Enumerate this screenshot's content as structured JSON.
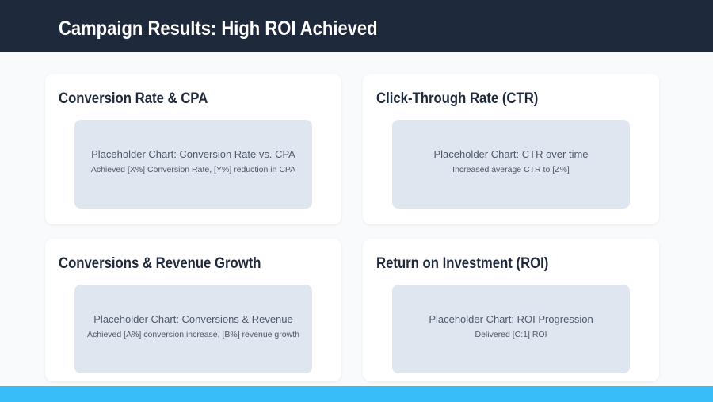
{
  "header": {
    "title": "Campaign Results: High ROI Achieved"
  },
  "cards": [
    {
      "heading": "Conversion Rate & CPA",
      "chart_title": "Placeholder Chart: Conversion Rate vs. CPA",
      "chart_subtitle": "Achieved [X%] Conversion Rate, [Y%] reduction in CPA"
    },
    {
      "heading": "Click-Through Rate (CTR)",
      "chart_title": "Placeholder Chart: CTR over time",
      "chart_subtitle": "Increased average CTR to [Z%]"
    },
    {
      "heading": "Conversions & Revenue Growth",
      "chart_title": "Placeholder Chart: Conversions & Revenue",
      "chart_subtitle": "Achieved [A%] conversion increase, [B%] revenue growth"
    },
    {
      "heading": "Return on Investment (ROI)",
      "chart_title": "Placeholder Chart: ROI Progression",
      "chart_subtitle": "Delivered [C:1] ROI"
    }
  ],
  "colors": {
    "header_bg": "#1e293b",
    "page_bg": "#f8fafc",
    "card_bg": "#ffffff",
    "placeholder_bg": "#dfe6ef",
    "heading_color": "#1e293b",
    "chart_text": "#4d5a6a",
    "accent_bar": "#38bdf8",
    "title_color": "#ffffff"
  }
}
